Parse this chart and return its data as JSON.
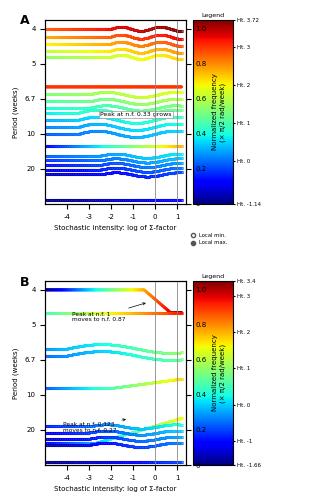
{
  "panel_A": {
    "label": "A",
    "annotation": "Peak at n.f. 0.33 grows",
    "colorbar_min": -1.14,
    "colorbar_max": 3.72,
    "colorbar_ticks": [
      3.72,
      3,
      2,
      1,
      0,
      -1.14
    ],
    "colorbar_labels": [
      "Ht. 3.72",
      "Ht. 3",
      "Ht. 2",
      "Ht. 1",
      "Ht. 0",
      "Ht. -1.14"
    ],
    "vlines": [
      0,
      1
    ],
    "xlim": [
      -5,
      1.4
    ],
    "ylim": [
      0,
      1.05
    ],
    "xticks": [
      -4,
      -3,
      -2,
      -1,
      0,
      1
    ],
    "yticks_nf": [
      0,
      0.2,
      0.4,
      0.6,
      0.8,
      1.0
    ],
    "yticks_period": [
      4,
      5,
      6.7,
      10,
      20
    ],
    "yticks_period_pos": [
      1.0,
      0.8,
      0.6,
      0.4,
      0.2
    ],
    "xlabel": "Stochastic intensity: log of Σ-factor",
    "ylabel_left": "Period (weeks)",
    "ylabel_right": "Normalized frequency\n(× π/2 rad/week)"
  },
  "panel_B": {
    "label": "B",
    "ann1_text": "Peak at n.f. 1\nmoves to n.f. 0.87",
    "ann2_text": "Peak at n.f. 0.123\nmoves to n.f. 0.27",
    "colorbar_min": -1.66,
    "colorbar_max": 3.4,
    "colorbar_ticks": [
      3.4,
      3,
      2,
      1,
      0,
      -1,
      -1.66
    ],
    "colorbar_labels": [
      "Ht. 3.4",
      "Ht. 3",
      "Ht. 2",
      "Ht. 1",
      "Ht. 0",
      "Ht. -1",
      "Ht. -1.66"
    ],
    "vlines": [
      0,
      1
    ],
    "xlim": [
      -5,
      1.4
    ],
    "ylim": [
      0,
      1.05
    ],
    "xticks": [
      -4,
      -3,
      -2,
      -1,
      0,
      1
    ],
    "yticks_nf": [
      0,
      0.2,
      0.4,
      0.6,
      0.8,
      1.0
    ],
    "yticks_period": [
      4,
      5,
      6.7,
      10,
      20
    ],
    "yticks_period_pos": [
      1.0,
      0.8,
      0.6,
      0.4,
      0.2
    ],
    "xlabel": "Stochastic intensity: log of Σ-factor",
    "ylabel_left": "Period (weeks)",
    "ylabel_right": "Normalized frequency\n(× π/2 rad/week)"
  },
  "background": "#ffffff"
}
